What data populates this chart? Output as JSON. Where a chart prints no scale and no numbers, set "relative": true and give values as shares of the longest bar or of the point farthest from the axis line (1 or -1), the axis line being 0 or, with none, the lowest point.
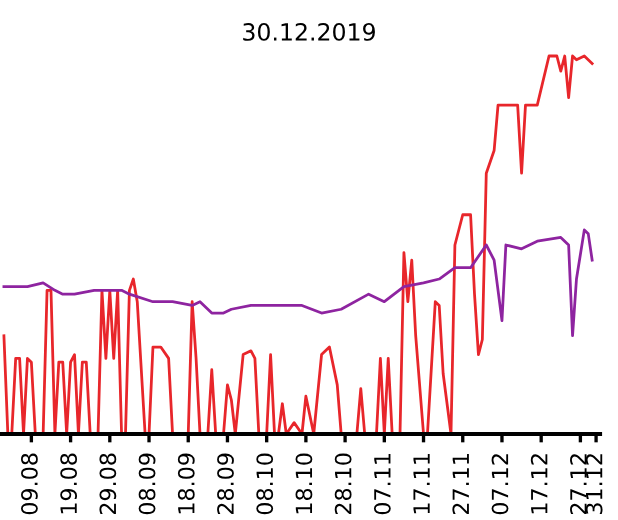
{
  "chart_data": {
    "type": "line",
    "title": "30.12.2019",
    "relative": true,
    "xlim": [
      "2019-08-01",
      "2020-01-01"
    ],
    "xticks": [
      {
        "value": "2019-08-09",
        "label": "09.08"
      },
      {
        "value": "2019-08-19",
        "label": "19.08"
      },
      {
        "value": "2019-08-29",
        "label": "29.08"
      },
      {
        "value": "2019-09-08",
        "label": "08.09"
      },
      {
        "value": "2019-09-18",
        "label": "18.09"
      },
      {
        "value": "2019-09-28",
        "label": "28.09"
      },
      {
        "value": "2019-10-08",
        "label": "08.10"
      },
      {
        "value": "2019-10-18",
        "label": "18.10"
      },
      {
        "value": "2019-10-28",
        "label": "28.10"
      },
      {
        "value": "2019-11-07",
        "label": "07.11"
      },
      {
        "value": "2019-11-17",
        "label": "17.11"
      },
      {
        "value": "2019-11-27",
        "label": "27.11"
      },
      {
        "value": "2019-12-07",
        "label": "07.12"
      },
      {
        "value": "2019-12-17",
        "label": "17.12"
      },
      {
        "value": "2019-12-27",
        "label": "27.12"
      },
      {
        "value": "2019-12-31",
        "label": "31.12"
      }
    ],
    "grid": false,
    "series": [
      {
        "color": "#e8262b",
        "x": [
          "2019-08-02",
          "2019-08-03",
          "2019-08-04",
          "2019-08-05",
          "2019-08-06",
          "2019-08-07",
          "2019-08-08",
          "2019-08-09",
          "2019-08-10",
          "2019-08-12",
          "2019-08-13",
          "2019-08-14",
          "2019-08-15",
          "2019-08-16",
          "2019-08-17",
          "2019-08-18",
          "2019-08-19",
          "2019-08-20",
          "2019-08-21",
          "2019-08-22",
          "2019-08-23",
          "2019-08-24",
          "2019-08-26",
          "2019-08-27",
          "2019-08-28",
          "2019-08-29",
          "2019-08-30",
          "2019-08-31",
          "2019-09-01",
          "2019-09-02",
          "2019-09-03",
          "2019-09-04",
          "2019-09-05",
          "2019-09-07",
          "2019-09-08",
          "2019-09-09",
          "2019-09-11",
          "2019-09-13",
          "2019-09-14",
          "2019-09-18",
          "2019-09-19",
          "2019-09-20",
          "2019-09-21",
          "2019-09-23",
          "2019-09-24",
          "2019-09-25",
          "2019-09-27",
          "2019-09-28",
          "2019-09-29",
          "2019-09-30",
          "2019-10-02",
          "2019-10-04",
          "2019-10-05",
          "2019-10-06",
          "2019-10-08",
          "2019-10-09",
          "2019-10-10",
          "2019-10-11",
          "2019-10-12",
          "2019-10-13",
          "2019-10-15",
          "2019-10-17",
          "2019-10-18",
          "2019-10-20",
          "2019-10-22",
          "2019-10-24",
          "2019-10-26",
          "2019-10-27",
          "2019-10-31",
          "2019-11-01",
          "2019-11-02",
          "2019-11-05",
          "2019-11-06",
          "2019-11-07",
          "2019-11-08",
          "2019-11-09",
          "2019-11-11",
          "2019-11-12",
          "2019-11-13",
          "2019-11-14",
          "2019-11-15",
          "2019-11-17",
          "2019-11-18",
          "2019-11-20",
          "2019-11-21",
          "2019-11-22",
          "2019-11-24",
          "2019-11-25",
          "2019-11-27",
          "2019-11-29",
          "2019-11-30",
          "2019-12-01",
          "2019-12-02",
          "2019-12-03",
          "2019-12-05",
          "2019-12-06",
          "2019-12-11",
          "2019-12-12",
          "2019-12-13",
          "2019-12-16",
          "2019-12-19",
          "2019-12-21",
          "2019-12-22",
          "2019-12-23",
          "2019-12-24",
          "2019-12-25",
          "2019-12-26",
          "2019-12-28",
          "2019-12-30"
        ],
        "values": [
          0.26,
          0,
          0,
          0.2,
          0.2,
          0,
          0.2,
          0.19,
          0,
          0,
          0.38,
          0.38,
          0,
          0.19,
          0.19,
          0,
          0.19,
          0.21,
          0,
          0.19,
          0.19,
          0,
          0,
          0.38,
          0.2,
          0.38,
          0.2,
          0.38,
          0,
          0,
          0.38,
          0.41,
          0.35,
          0,
          0,
          0.23,
          0.23,
          0.2,
          0,
          0,
          0.35,
          0.2,
          0,
          0,
          0.17,
          0,
          0,
          0.13,
          0.09,
          0,
          0.21,
          0.22,
          0.2,
          0,
          0,
          0.21,
          0,
          0,
          0.08,
          0,
          0.03,
          0,
          0.1,
          0,
          0.21,
          0.23,
          0.13,
          0,
          0,
          0.12,
          0,
          0,
          0.2,
          0,
          0.2,
          0,
          0,
          0.48,
          0.35,
          0.46,
          0.26,
          0,
          0,
          0.35,
          0.34,
          0.16,
          0,
          0.5,
          0.58,
          0.58,
          0.37,
          0.21,
          0.25,
          0.69,
          0.75,
          0.87,
          0.87,
          0.69,
          0.87,
          0.87,
          1.0,
          1.0,
          0.96,
          1.0,
          0.89,
          1.0,
          0.99,
          1.0,
          0.98
        ]
      },
      {
        "color": "#8e24a0",
        "x": [
          "2019-08-02",
          "2019-08-08",
          "2019-08-12",
          "2019-08-15",
          "2019-08-17",
          "2019-08-20",
          "2019-08-25",
          "2019-08-30",
          "2019-09-01",
          "2019-09-03",
          "2019-09-09",
          "2019-09-14",
          "2019-09-19",
          "2019-09-21",
          "2019-09-24",
          "2019-09-27",
          "2019-09-29",
          "2019-10-04",
          "2019-10-10",
          "2019-10-15",
          "2019-10-17",
          "2019-10-22",
          "2019-10-27",
          "2019-11-03",
          "2019-11-07",
          "2019-11-12",
          "2019-11-17",
          "2019-11-21",
          "2019-11-25",
          "2019-11-29",
          "2019-12-03",
          "2019-12-05",
          "2019-12-07",
          "2019-12-08",
          "2019-12-12",
          "2019-12-16",
          "2019-12-22",
          "2019-12-24",
          "2019-12-25",
          "2019-12-26",
          "2019-12-28",
          "2019-12-29",
          "2019-12-30"
        ],
        "values": [
          0.39,
          0.39,
          0.4,
          0.38,
          0.37,
          0.37,
          0.38,
          0.38,
          0.38,
          0.37,
          0.35,
          0.35,
          0.34,
          0.35,
          0.32,
          0.32,
          0.33,
          0.34,
          0.34,
          0.34,
          0.34,
          0.32,
          0.33,
          0.37,
          0.35,
          0.39,
          0.4,
          0.41,
          0.44,
          0.44,
          0.5,
          0.46,
          0.3,
          0.5,
          0.49,
          0.51,
          0.52,
          0.5,
          0.26,
          0.41,
          0.54,
          0.53,
          0.46
        ]
      }
    ]
  }
}
